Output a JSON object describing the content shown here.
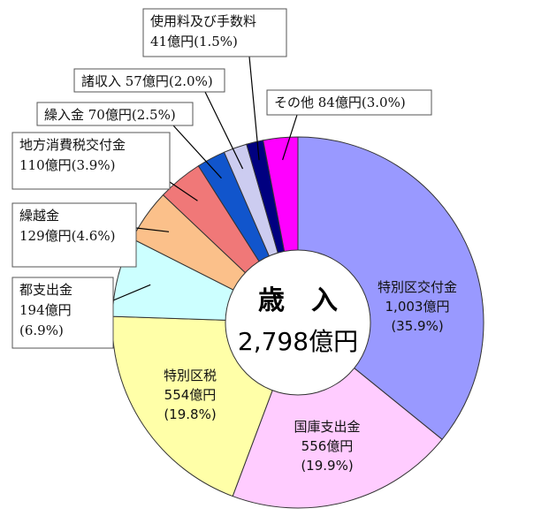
{
  "chart_data": {
    "type": "pie",
    "center_title": "歳　入",
    "center_total": "2,798億円",
    "slices": [
      {
        "name": "特別区交付金",
        "value": 1003,
        "amount": "1,003億円",
        "pct": "(35.9%)",
        "color": "#9999ff"
      },
      {
        "name": "国庫支出金",
        "value": 556,
        "amount": "556億円",
        "pct": "(19.9%)",
        "color": "#ffccff"
      },
      {
        "name": "特別区税",
        "value": 554,
        "amount": "554億円",
        "pct": "(19.8%)",
        "color": "#ffffa8"
      },
      {
        "name": "都支出金",
        "value": 194,
        "amount": "194億円",
        "pct": "(6.9%)",
        "color": "#ccffff"
      },
      {
        "name": "繰越金",
        "value": 129,
        "amount": "129億円",
        "pct": "(4.6%)",
        "color": "#fbc08a"
      },
      {
        "name": "地方消費税交付金",
        "value": 110,
        "amount": "110億円",
        "pct": "(3.9%)",
        "color": "#f07878"
      },
      {
        "name": "繰入金",
        "value": 70,
        "amount": "70億円",
        "pct": "(2.5%)",
        "color": "#1155cc"
      },
      {
        "name": "諸収入",
        "value": 57,
        "amount": "57億円",
        "pct": "(2.0%)",
        "color": "#ccccf0"
      },
      {
        "name": "使用料及び手数料",
        "value": 41,
        "amount": "41億円",
        "pct": "(1.5%)",
        "color": "#000080"
      },
      {
        "name": "その他",
        "value": 84,
        "amount": "84億円",
        "pct": "(3.0%)",
        "color": "#ff00ff"
      }
    ],
    "labels": {
      "inside_0": [
        "特別区交付金",
        "1,003億円",
        "(35.9%)"
      ],
      "inside_1": [
        "国庫支出金",
        "556億円",
        "(19.9%)"
      ],
      "inside_2": [
        "特別区税",
        "554億円",
        "(19.8%)"
      ],
      "box_3": [
        "都支出金",
        "194億円",
        "(6.9%)"
      ],
      "box_4": [
        "繰越金",
        "129億円(4.6%)"
      ],
      "box_5": [
        "地方消費税交付金",
        "110億円(3.9%)"
      ],
      "box_6": [
        "繰入金 70億円(2.5%)"
      ],
      "box_7": [
        "諸収入 57億円(2.0%)"
      ],
      "box_8": [
        "使用料及び手数料",
        "41億円(1.5%)"
      ],
      "box_9": [
        "その他 84億円(3.0%)"
      ]
    }
  }
}
